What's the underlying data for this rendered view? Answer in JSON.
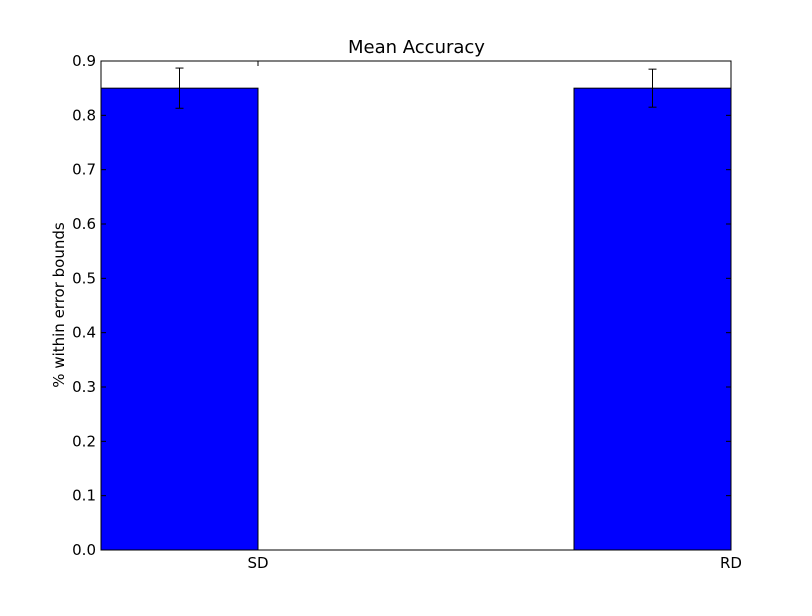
{
  "chart_data": {
    "type": "bar",
    "title": "Mean Accuracy",
    "xlabel": "",
    "ylabel": "% within error bounds",
    "categories": [
      "SD",
      "RD"
    ],
    "values": [
      0.85,
      0.85
    ],
    "errors": [
      0.037,
      0.035
    ],
    "ylim": [
      0,
      0.9
    ],
    "yticks": [
      "0.0",
      "0.1",
      "0.2",
      "0.3",
      "0.4",
      "0.5",
      "0.6",
      "0.7",
      "0.8",
      "0.9"
    ],
    "grid": false,
    "bar_color": "#0000ff",
    "legend": null
  }
}
